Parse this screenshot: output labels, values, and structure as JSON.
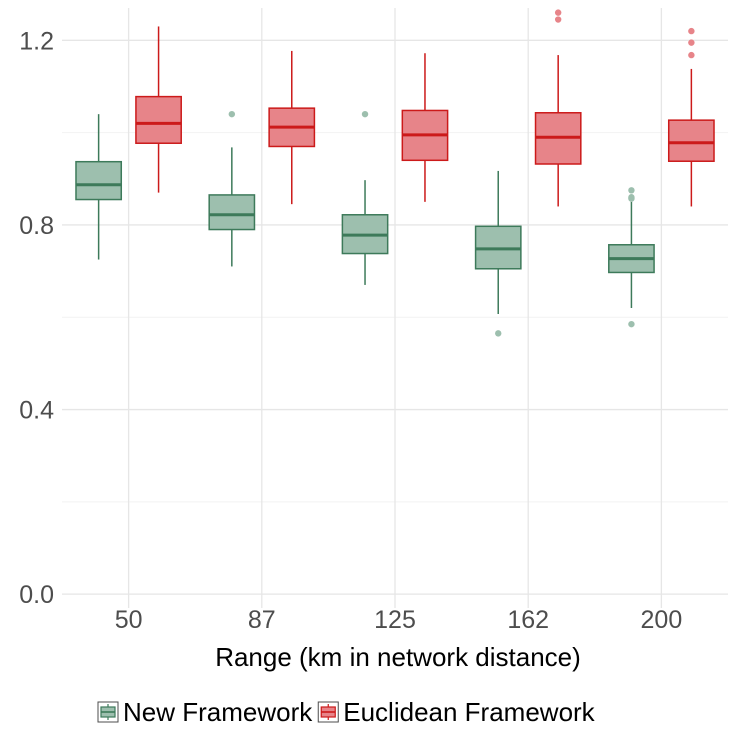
{
  "chart_data": {
    "type": "boxplot",
    "title": "",
    "xlabel": "Range (km in network distance)",
    "ylabel": "",
    "categories": [
      "50",
      "87",
      "125",
      "162",
      "200"
    ],
    "ylim": [
      -0.03,
      1.27
    ],
    "yticks": [
      0.0,
      0.4,
      0.8,
      1.2
    ],
    "ytick_labels": [
      "0.0",
      "0.4",
      "0.8",
      "1.2"
    ],
    "grid": true,
    "legend_position": "bottom",
    "series": [
      {
        "name": "New Framework",
        "fill": "#9dbfae",
        "stroke": "#3d7a5a",
        "boxes": [
          {
            "min": 0.725,
            "q1": 0.855,
            "median": 0.887,
            "q3": 0.937,
            "max": 1.04,
            "outliers": []
          },
          {
            "min": 0.71,
            "q1": 0.79,
            "median": 0.822,
            "q3": 0.865,
            "max": 0.968,
            "outliers": [
              1.04
            ]
          },
          {
            "min": 0.67,
            "q1": 0.738,
            "median": 0.778,
            "q3": 0.822,
            "max": 0.897,
            "outliers": [
              1.04
            ]
          },
          {
            "min": 0.607,
            "q1": 0.705,
            "median": 0.748,
            "q3": 0.797,
            "max": 0.917,
            "outliers": [
              0.565
            ]
          },
          {
            "min": 0.62,
            "q1": 0.697,
            "median": 0.727,
            "q3": 0.757,
            "max": 0.85,
            "outliers": [
              0.585,
              0.857,
              0.86,
              0.875
            ]
          }
        ]
      },
      {
        "name": "Euclidean Framework",
        "fill": "#e78489",
        "stroke": "#cc1a1a",
        "boxes": [
          {
            "min": 0.87,
            "q1": 0.977,
            "median": 1.02,
            "q3": 1.078,
            "max": 1.23,
            "outliers": []
          },
          {
            "min": 0.845,
            "q1": 0.97,
            "median": 1.012,
            "q3": 1.053,
            "max": 1.177,
            "outliers": []
          },
          {
            "min": 0.85,
            "q1": 0.94,
            "median": 0.995,
            "q3": 1.048,
            "max": 1.172,
            "outliers": []
          },
          {
            "min": 0.84,
            "q1": 0.932,
            "median": 0.99,
            "q3": 1.043,
            "max": 1.168,
            "outliers": [
              1.245,
              1.26
            ]
          },
          {
            "min": 0.84,
            "q1": 0.938,
            "median": 0.978,
            "q3": 1.027,
            "max": 1.138,
            "outliers": [
              1.168,
              1.195,
              1.22
            ]
          }
        ]
      }
    ]
  }
}
